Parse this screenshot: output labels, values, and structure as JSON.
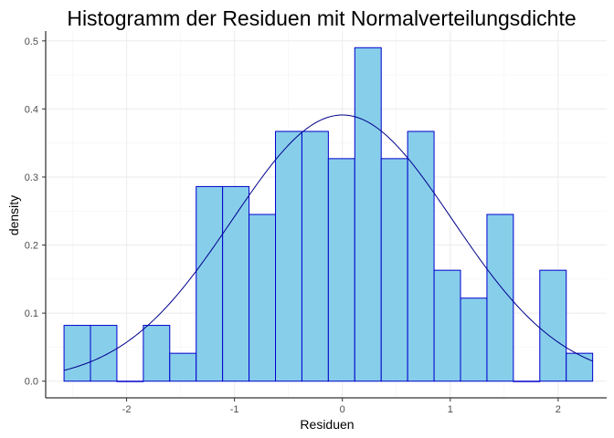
{
  "chart_data": {
    "type": "bar",
    "title": "Histogramm der Residuen mit Normalverteilungsdichte",
    "xlabel": "Residuen",
    "ylabel": "density",
    "xlim": [
      -2.75,
      2.45
    ],
    "ylim": [
      -0.0245,
      0.5145
    ],
    "grid": true,
    "x_ticks": [
      -2,
      -1,
      0,
      1,
      2
    ],
    "x_tick_labels": [
      "-2",
      "-1",
      "0",
      "1",
      "2"
    ],
    "y_ticks": [
      0.0,
      0.1,
      0.2,
      0.3,
      0.4,
      0.5
    ],
    "y_tick_labels": [
      "0.0",
      "0.1",
      "0.2",
      "0.3",
      "0.4",
      "0.5"
    ],
    "bin_width": 0.245,
    "bins": [
      {
        "x0": -2.58,
        "x1": -2.335,
        "density": 0.082
      },
      {
        "x0": -2.335,
        "x1": -2.09,
        "density": 0.082
      },
      {
        "x0": -2.09,
        "x1": -1.845,
        "density": 0.0
      },
      {
        "x0": -1.845,
        "x1": -1.6,
        "density": 0.082
      },
      {
        "x0": -1.6,
        "x1": -1.355,
        "density": 0.041
      },
      {
        "x0": -1.355,
        "x1": -1.11,
        "density": 0.286
      },
      {
        "x0": -1.11,
        "x1": -0.865,
        "density": 0.286
      },
      {
        "x0": -0.865,
        "x1": -0.62,
        "density": 0.245
      },
      {
        "x0": -0.62,
        "x1": -0.375,
        "density": 0.367
      },
      {
        "x0": -0.375,
        "x1": -0.13,
        "density": 0.367
      },
      {
        "x0": -0.13,
        "x1": 0.115,
        "density": 0.327
      },
      {
        "x0": 0.115,
        "x1": 0.36,
        "density": 0.49
      },
      {
        "x0": 0.36,
        "x1": 0.605,
        "density": 0.327
      },
      {
        "x0": 0.605,
        "x1": 0.85,
        "density": 0.367
      },
      {
        "x0": 0.85,
        "x1": 1.095,
        "density": 0.163
      },
      {
        "x0": 1.095,
        "x1": 1.34,
        "density": 0.122
      },
      {
        "x0": 1.34,
        "x1": 1.585,
        "density": 0.245
      },
      {
        "x0": 1.585,
        "x1": 1.83,
        "density": 0.0
      },
      {
        "x0": 1.83,
        "x1": 2.075,
        "density": 0.163
      },
      {
        "x0": 2.075,
        "x1": 2.32,
        "density": 0.041
      }
    ],
    "density_curve": {
      "distribution": "normal",
      "mean": 0.0,
      "sd": 1.02,
      "x_range": [
        -2.58,
        2.32
      ]
    },
    "colors": {
      "bar_fill": "#87ceeb",
      "bar_outline": "#0000cd",
      "curve": "#00008b"
    }
  }
}
